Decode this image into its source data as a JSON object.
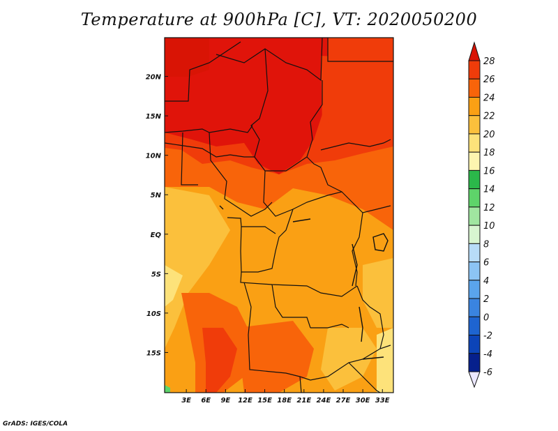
{
  "title": "Temperature at 900hPa [C], VT: 2020050200",
  "footer": "GrADS: IGES/COLA",
  "map": {
    "lon_labels": [
      "3E",
      "6E",
      "9E",
      "12E",
      "15E",
      "18E",
      "21E",
      "24E",
      "27E",
      "30E",
      "33E"
    ],
    "lat_labels": [
      "20N",
      "15N",
      "10N",
      "5N",
      "EQ",
      "5S",
      "10S",
      "15S"
    ],
    "lon_values": [
      3,
      6,
      9,
      12,
      15,
      18,
      21,
      24,
      27,
      30,
      33
    ],
    "lat_values": [
      20,
      15,
      10,
      5,
      0,
      -5,
      -10,
      -15
    ],
    "lon_range": [
      0,
      35
    ],
    "lat_range": [
      -20,
      25
    ]
  },
  "colorbar": {
    "levels": [
      "28",
      "26",
      "24",
      "22",
      "20",
      "18",
      "16",
      "14",
      "12",
      "10",
      "8",
      "6",
      "4",
      "2",
      "0",
      "-2",
      "-4",
      "-6"
    ],
    "colors": [
      "#e0140a",
      "#f03c0a",
      "#f8640a",
      "#faa014",
      "#fbc03c",
      "#fde27a",
      "#fdf5b0",
      "#2bb84a",
      "#5ed46a",
      "#a0e6a0",
      "#d8f5d0",
      "#b8dcf8",
      "#8cc4f4",
      "#5aa4ec",
      "#3a84e0",
      "#1e64d0",
      "#0c44b8",
      "#06208c",
      "#021060"
    ],
    "over_color": "#d91405",
    "under_color": "#ece8ff"
  }
}
